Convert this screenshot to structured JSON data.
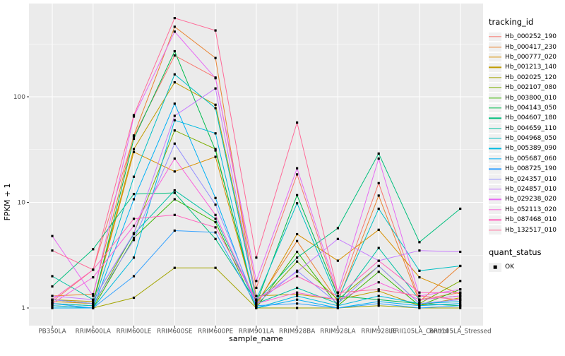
{
  "chart_data": {
    "type": "line",
    "title": "",
    "xlabel": "sample_name",
    "ylabel": "FPKM + 1",
    "y_scale": "log10",
    "ylim": [
      1,
      750
    ],
    "y_ticks": [
      1,
      10,
      100
    ],
    "y_minor_gridlines": [
      3.162,
      31.62,
      316.2
    ],
    "grid": "on",
    "legend_position": "right",
    "panel_bg": "#EBEBEB",
    "grid_color": "#FFFFFF",
    "point_color": "#000000",
    "point_shape": "square",
    "axis_text_color": "#4D4D4D",
    "tick_color": "#333333",
    "legend_key_bg": "#F0F0F0",
    "legend_title": "tracking_id",
    "quant_legend": {
      "title": "quant_status",
      "items": [
        {
          "label": "OK"
        }
      ]
    },
    "categories": [
      "PB350LA",
      "RRIM600LA",
      "RRIM600LE",
      "RRIM600SE",
      "RRIM600PE",
      "RRIM901LA",
      "RRIM928BA",
      "RRIM928LA",
      "RRIM928LE",
      "RRII105LA_Control",
      "RRII105LA_Stressed"
    ],
    "series": [
      {
        "name": "Hb_000252_190",
        "color": "#F8766D",
        "values": [
          1.15,
          2.3,
          42,
          246,
          152,
          1.55,
          18.4,
          1.3,
          15.2,
          1.2,
          1.4
        ]
      },
      {
        "name": "Hb_000417_230",
        "color": "#EA8331",
        "values": [
          1.3,
          1.35,
          43,
          460,
          233,
          1.1,
          4.3,
          1.15,
          11.6,
          1.15,
          2.5
        ]
      },
      {
        "name": "Hb_000777_020",
        "color": "#D89000",
        "values": [
          1.15,
          1.1,
          30,
          19.6,
          27,
          1.05,
          5.0,
          2.8,
          5.5,
          1.95,
          1.35
        ]
      },
      {
        "name": "Hb_001213_140",
        "color": "#C09B00",
        "values": [
          1.2,
          1.15,
          32,
          137,
          84,
          1.3,
          1.35,
          1.2,
          1.45,
          1.05,
          1.25
        ]
      },
      {
        "name": "Hb_002025_120",
        "color": "#A3A500",
        "values": [
          1.05,
          1.0,
          1.25,
          2.4,
          2.4,
          1.0,
          1.0,
          1.0,
          1.05,
          1.0,
          1.0
        ]
      },
      {
        "name": "Hb_002107_080",
        "color": "#7CAE00",
        "values": [
          1.1,
          1.05,
          5.1,
          48,
          32,
          1.05,
          2.75,
          1.2,
          2.5,
          1.1,
          1.8
        ]
      },
      {
        "name": "Hb_003800_010",
        "color": "#39B600",
        "values": [
          1.0,
          1.0,
          4.6,
          10.7,
          6.5,
          1.0,
          3.4,
          1.05,
          2.2,
          1.05,
          1.5
        ]
      },
      {
        "name": "Hb_004143_050",
        "color": "#00BB4E",
        "values": [
          1.2,
          1.1,
          40,
          270,
          31,
          1.1,
          11.7,
          1.3,
          1.2,
          1.1,
          1.05
        ]
      },
      {
        "name": "Hb_004607_180",
        "color": "#00BF7D",
        "values": [
          1.6,
          3.6,
          12,
          12.3,
          4.5,
          1.15,
          3.0,
          5.7,
          29,
          4.2,
          8.7
        ]
      },
      {
        "name": "Hb_004659_110",
        "color": "#00C1A3",
        "values": [
          2.0,
          1.2,
          5.0,
          13,
          7.0,
          1.1,
          1.55,
          1.1,
          3.7,
          1.2,
          1.3
        ]
      },
      {
        "name": "Hb_004968_050",
        "color": "#00BFC4",
        "values": [
          1.1,
          1.05,
          17.5,
          163,
          78,
          1.2,
          9.8,
          1.2,
          8.7,
          2.25,
          2.5
        ]
      },
      {
        "name": "Hb_005389_090",
        "color": "#00BAE0",
        "values": [
          1.05,
          1.0,
          3.0,
          60,
          45,
          1.0,
          1.3,
          1.05,
          1.3,
          1.1,
          1.15
        ]
      },
      {
        "name": "Hb_005687_060",
        "color": "#00B0F6",
        "values": [
          1.0,
          1.0,
          10.7,
          86,
          11,
          1.0,
          1.2,
          1.0,
          1.15,
          1.05,
          1.1
        ]
      },
      {
        "name": "Hb_008725_190",
        "color": "#35A2FF",
        "values": [
          1.1,
          1.0,
          2.0,
          5.4,
          5.2,
          1.05,
          1.1,
          1.0,
          1.1,
          1.0,
          1.05
        ]
      },
      {
        "name": "Hb_024357_010",
        "color": "#9590FF",
        "values": [
          1.2,
          1.1,
          4.4,
          36,
          9.5,
          1.1,
          2.25,
          1.1,
          2.5,
          1.1,
          1.2
        ]
      },
      {
        "name": "Hb_024857_010",
        "color": "#C77CFF",
        "values": [
          1.3,
          1.2,
          5.1,
          66,
          120,
          1.2,
          2.2,
          4.5,
          2.8,
          3.5,
          3.4
        ]
      },
      {
        "name": "Hb_029238_020",
        "color": "#E76BF3",
        "values": [
          4.8,
          1.3,
          65,
          414,
          150,
          1.8,
          21,
          1.4,
          26,
          1.3,
          1.5
        ]
      },
      {
        "name": "Hb_052113_020",
        "color": "#FA62DB",
        "values": [
          1.1,
          1.95,
          6.0,
          26,
          7.6,
          1.1,
          1.4,
          1.2,
          1.75,
          1.2,
          1.3
        ]
      },
      {
        "name": "Hb_087468_010",
        "color": "#FF62BC",
        "values": [
          1.2,
          2.3,
          7.0,
          7.6,
          5.8,
          1.2,
          2.0,
          1.3,
          2.8,
          1.4,
          1.4
        ]
      },
      {
        "name": "Hb_132517_010",
        "color": "#FF6A98",
        "values": [
          3.5,
          2.3,
          67,
          556,
          425,
          3.0,
          57,
          1.4,
          1.5,
          1.3,
          1.2
        ]
      }
    ]
  }
}
